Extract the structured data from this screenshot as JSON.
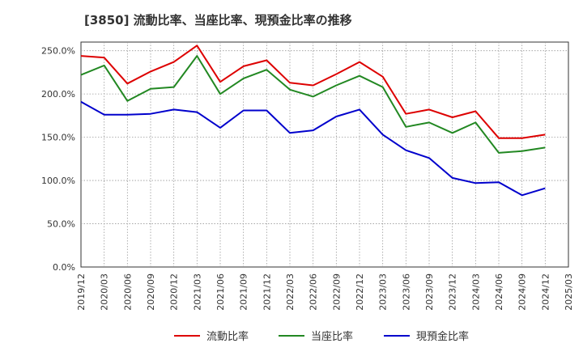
{
  "chart_data": {
    "type": "line",
    "title": "[3850]  流動比率、当座比率、現預金比率の推移",
    "xlabel": "",
    "ylabel": "",
    "ylim": [
      0,
      260
    ],
    "y_ticks": [
      0,
      50,
      100,
      150,
      200,
      250
    ],
    "y_tick_labels": [
      "0.0%",
      "50.0%",
      "100.0%",
      "150.0%",
      "200.0%",
      "250.0%"
    ],
    "grid": true,
    "legend_position": "bottom",
    "x_tick_labels": [
      "2019/12",
      "2020/03",
      "2020/06",
      "2020/09",
      "2020/12",
      "2021/03",
      "2021/06",
      "2021/09",
      "2021/12",
      "2022/03",
      "2022/06",
      "2022/09",
      "2022/12",
      "2023/03",
      "2023/06",
      "2023/09",
      "2023/12",
      "2024/03",
      "2024/06",
      "2024/09",
      "2024/12",
      "2025/03"
    ],
    "x": [
      "2019/12",
      "2020/03",
      "2020/06",
      "2020/09",
      "2020/12",
      "2021/03",
      "2021/06",
      "2021/09",
      "2021/12",
      "2022/03",
      "2022/06",
      "2022/09",
      "2022/12",
      "2023/03",
      "2023/06",
      "2023/09",
      "2023/12",
      "2024/03",
      "2024/06",
      "2024/09",
      "2024/12"
    ],
    "series": [
      {
        "name": "流動比率",
        "color": "#dd0000",
        "values": [
          244,
          242,
          212,
          226,
          237,
          256,
          214,
          232,
          239,
          213,
          210,
          223,
          237,
          220,
          177,
          182,
          173,
          180,
          149,
          149,
          153
        ]
      },
      {
        "name": "当座比率",
        "color": "#228822",
        "values": [
          222,
          233,
          192,
          206,
          208,
          244,
          200,
          218,
          228,
          205,
          197,
          210,
          221,
          208,
          162,
          167,
          155,
          167,
          132,
          134,
          138
        ]
      },
      {
        "name": "現預金比率",
        "color": "#0000cc",
        "values": [
          191,
          176,
          176,
          177,
          182,
          179,
          161,
          181,
          181,
          155,
          158,
          174,
          182,
          153,
          135,
          126,
          103,
          97,
          98,
          83,
          91
        ]
      }
    ]
  }
}
